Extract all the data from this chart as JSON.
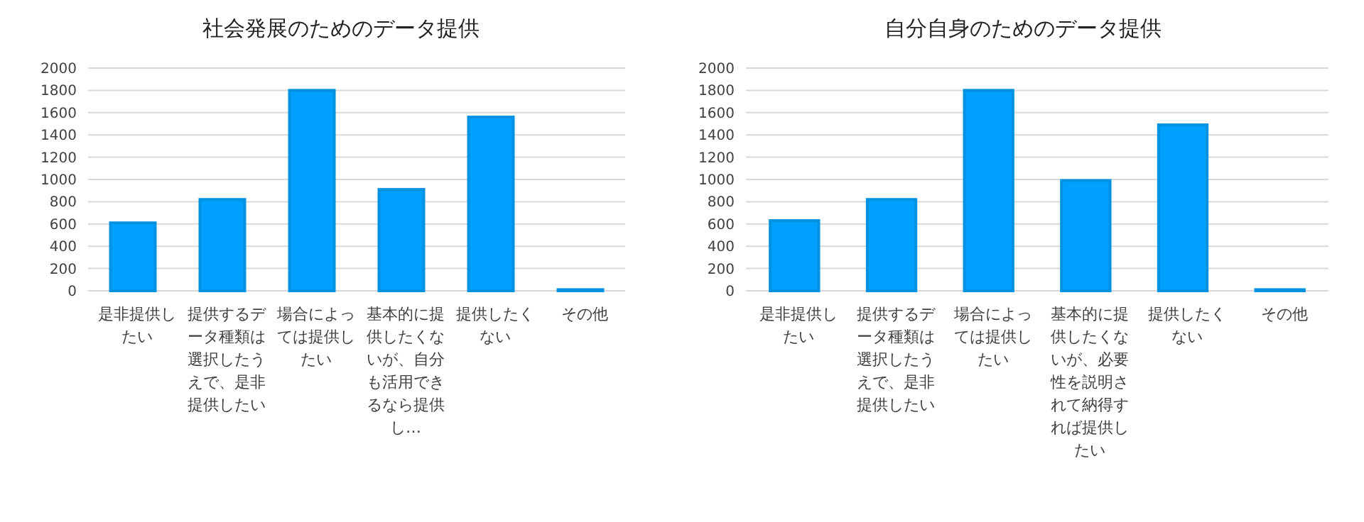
{
  "chart_data": [
    {
      "type": "bar",
      "title": "社会発展のためのデータ提供",
      "categories": [
        "是非提供したい",
        "提供するデータ種類は選択したうえで、是非提供したい",
        "場合によっては提供したい",
        "基本的に提供したくないが、自分も活用できるなら提供し…",
        "提供したくない",
        "その他"
      ],
      "values": [
        610,
        820,
        1800,
        910,
        1560,
        10
      ],
      "color": "#00a0ff",
      "ylim": [
        0,
        2000
      ],
      "yticks": [
        0,
        200,
        400,
        600,
        800,
        1000,
        1200,
        1400,
        1600,
        1800,
        2000
      ],
      "grid": "y"
    },
    {
      "type": "bar",
      "title": "自分自身のためのデータ提供",
      "categories": [
        "是非提供したい",
        "提供するデータ種類は選択したうえで、是非提供したい",
        "場合によっては提供したい",
        "基本的に提供したくないが、必要性を説明されて納得すれば提供したい",
        "提供したくない",
        "その他"
      ],
      "values": [
        630,
        820,
        1800,
        990,
        1490,
        10
      ],
      "color": "#00a0ff",
      "ylim": [
        0,
        2000
      ],
      "yticks": [
        0,
        200,
        400,
        600,
        800,
        1000,
        1200,
        1400,
        1600,
        1800,
        2000
      ],
      "grid": "y"
    }
  ]
}
